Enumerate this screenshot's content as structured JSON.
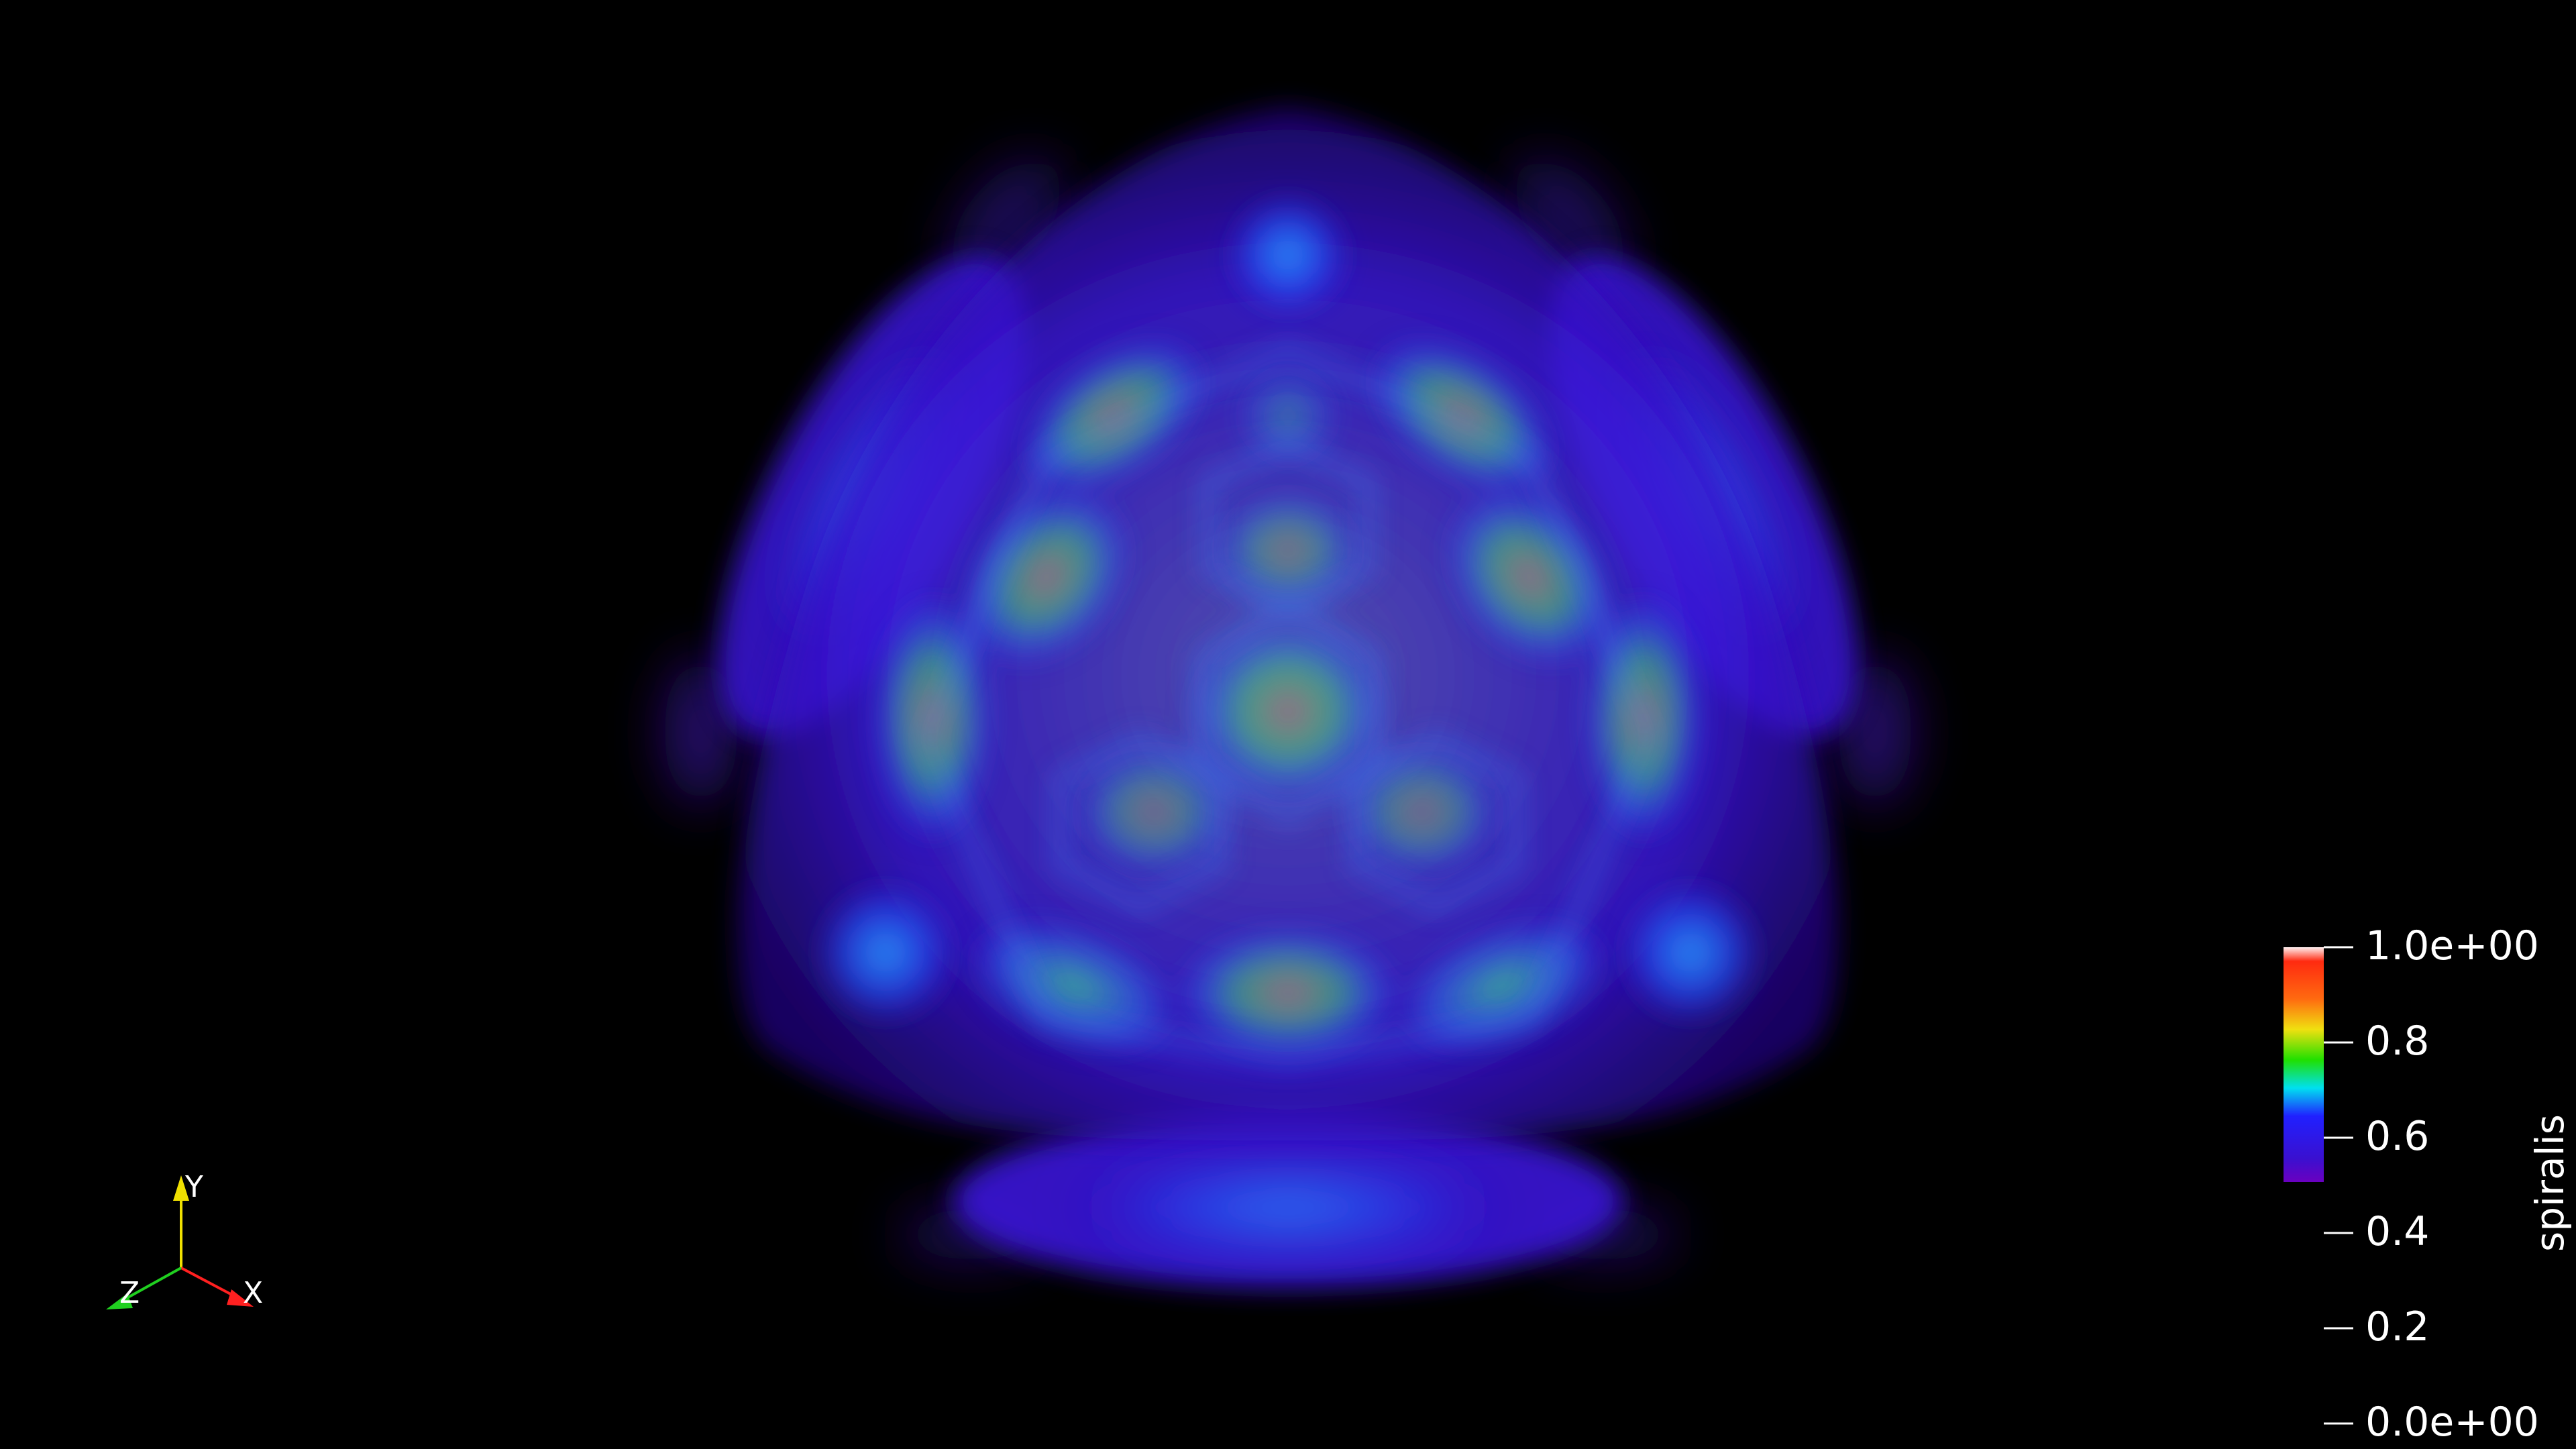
{
  "colorbar": {
    "title": "spiralis",
    "ticks": [
      "1.0e+00",
      "0.8",
      "0.6",
      "0.4",
      "0.2",
      "0.0e+00"
    ],
    "gradient_stops": [
      "#fff0f0",
      "#ff2a10",
      "#ffa010",
      "#f0e010",
      "#20e000",
      "#00e0f0",
      "#2020ff",
      "#3a10d0",
      "#6a00c0"
    ]
  },
  "orientation_axes": {
    "x_label": "X",
    "y_label": "Y",
    "z_label": "Z",
    "x_color": "#ff2020",
    "y_color": "#f0e000",
    "z_color": "#20d020"
  },
  "volume": {
    "base_color": "#3a10d8",
    "highlight_colors": [
      "#2a8cff",
      "#28d070",
      "#d05070"
    ]
  }
}
